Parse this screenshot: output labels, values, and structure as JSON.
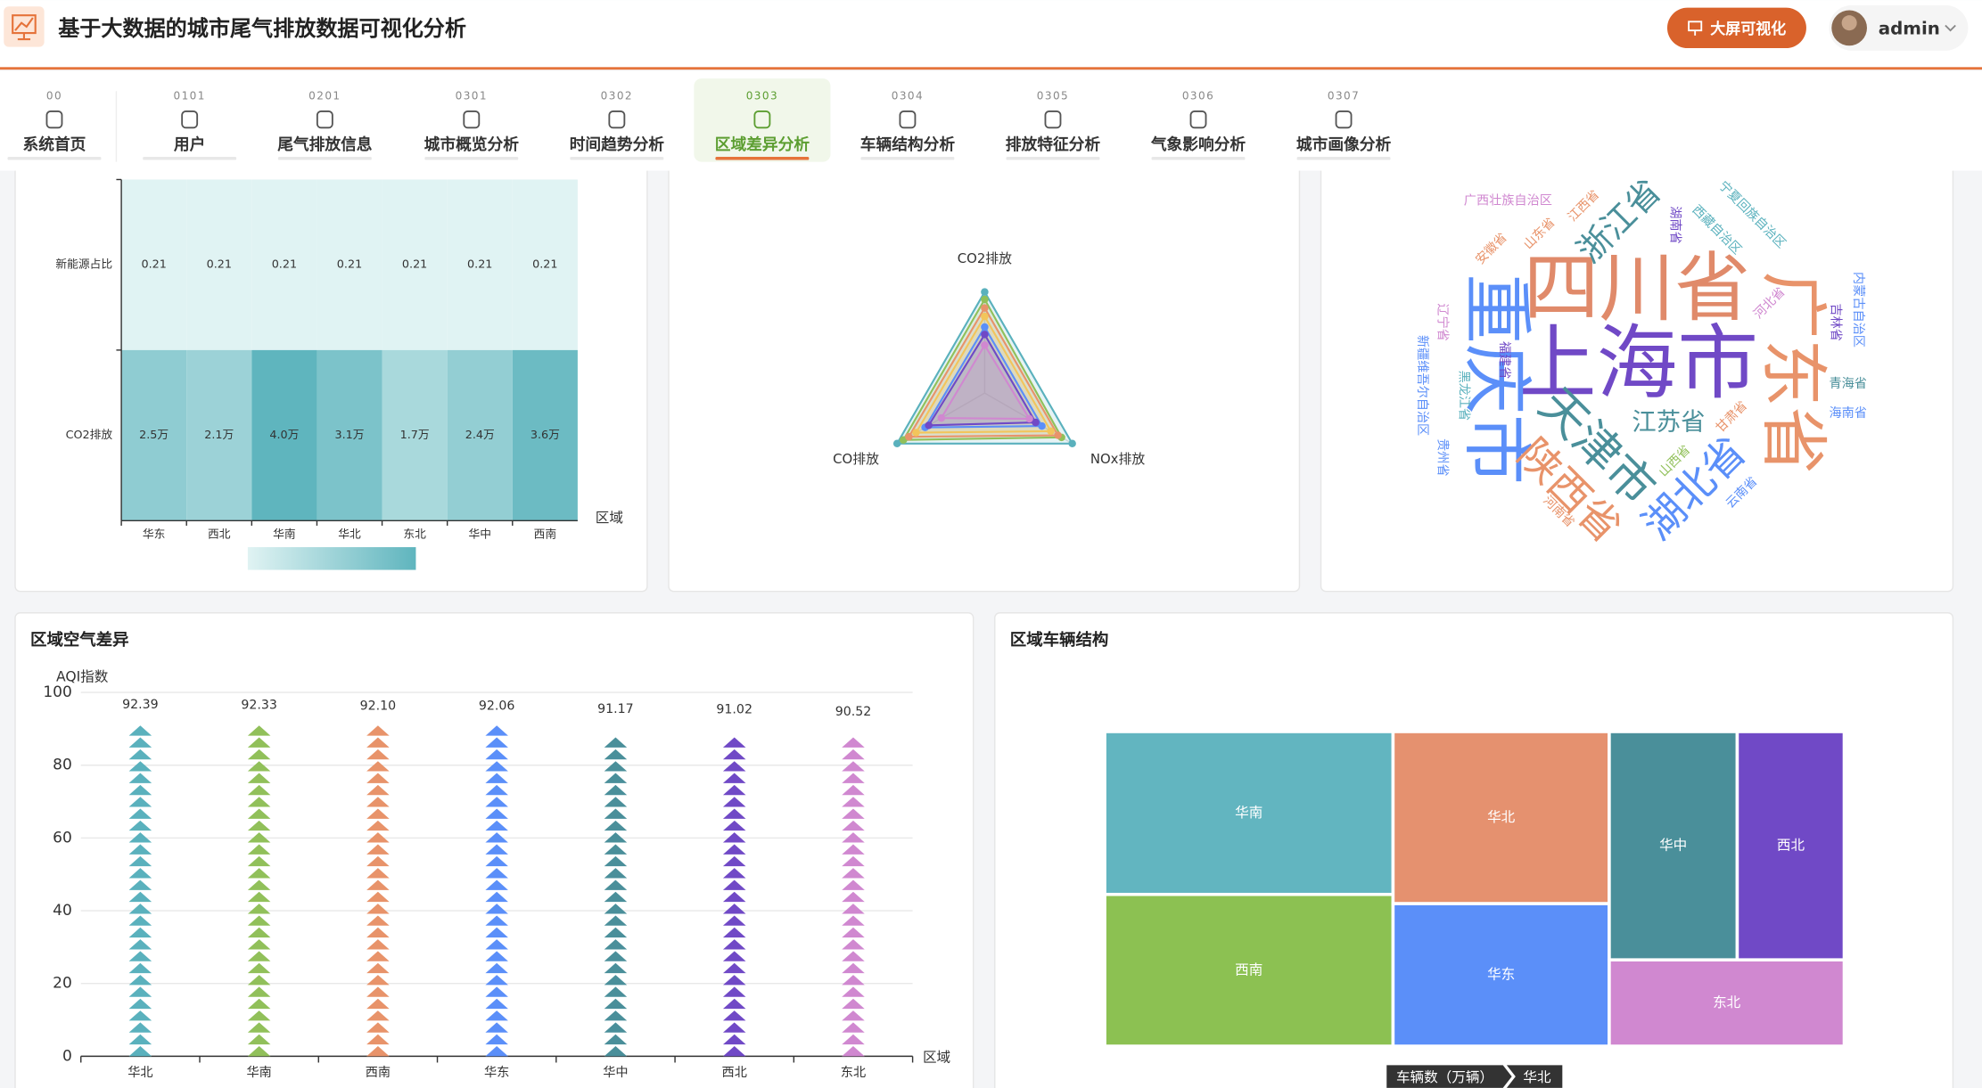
{
  "header": {
    "title": "基于大数据的城市尾气排放数据可视化分析",
    "screen_button": "大屏可视化",
    "user": "admin"
  },
  "nav": [
    {
      "code": "00",
      "label": "系统首页"
    },
    {
      "code": "0101",
      "label": "用户"
    },
    {
      "code": "0201",
      "label": "尾气排放信息"
    },
    {
      "code": "0301",
      "label": "城市概览分析"
    },
    {
      "code": "0302",
      "label": "时间趋势分析"
    },
    {
      "code": "0303",
      "label": "区域差异分析",
      "active": true
    },
    {
      "code": "0304",
      "label": "车辆结构分析"
    },
    {
      "code": "0305",
      "label": "排放特征分析"
    },
    {
      "code": "0306",
      "label": "气象影响分析"
    },
    {
      "code": "0307",
      "label": "城市画像分析"
    }
  ],
  "chart_data": [
    {
      "type": "heatmap",
      "x_label": "区域",
      "categories": [
        "华东",
        "西北",
        "华南",
        "华北",
        "东北",
        "华中",
        "西南"
      ],
      "series": [
        {
          "name": "新能源占比",
          "values": [
            0.21,
            0.21,
            0.21,
            0.21,
            0.21,
            0.21,
            0.21
          ]
        },
        {
          "name": "CO2排放",
          "values": [
            25000,
            21000,
            40000,
            31000,
            17000,
            24000,
            36000
          ],
          "value_labels": [
            "2.5万",
            "2.1万",
            "4.0万",
            "3.1万",
            "1.7万",
            "2.4万",
            "3.6万"
          ]
        }
      ]
    },
    {
      "type": "radar",
      "indicators": [
        "CO2排放",
        "NOx排放",
        "CO排放"
      ],
      "series": [
        {
          "color": "#5ab1bd",
          "values": [
            95,
            98,
            97
          ]
        },
        {
          "color": "#91c05a",
          "values": [
            88,
            86,
            90
          ]
        },
        {
          "color": "#e8936a",
          "values": [
            80,
            82,
            84
          ]
        },
        {
          "color": "#f2c55c",
          "values": [
            72,
            74,
            76
          ]
        },
        {
          "color": "#5b8ff9",
          "values": [
            62,
            64,
            66
          ]
        },
        {
          "color": "#7049c6",
          "values": [
            55,
            57,
            62
          ]
        },
        {
          "color": "#d088d0",
          "values": [
            45,
            50,
            48
          ]
        }
      ]
    },
    {
      "type": "wordcloud",
      "words": [
        {
          "text": "四川省",
          "weight": 60,
          "color": "#e08a6a"
        },
        {
          "text": "上海市",
          "weight": 64,
          "color": "#7049c6"
        },
        {
          "text": "重庆市",
          "weight": 56,
          "color": "#5b8ff9"
        },
        {
          "text": "广东省",
          "weight": 54,
          "color": "#e8936a"
        },
        {
          "text": "天津市",
          "weight": 38,
          "color": "#4a8f9a"
        },
        {
          "text": "陕西省",
          "weight": 34,
          "color": "#e8936a"
        },
        {
          "text": "湖北省",
          "weight": 34,
          "color": "#5b8ff9"
        },
        {
          "text": "浙江省",
          "weight": 28,
          "color": "#4a8f9a"
        },
        {
          "text": "江苏省",
          "weight": 21,
          "color": "#4a8f9a"
        },
        {
          "text": "广西壮族自治区",
          "weight": 12,
          "color": "#d088d0"
        },
        {
          "text": "宁夏回族自治区",
          "weight": 12,
          "color": "#5ab1bd"
        },
        {
          "text": "安徽省",
          "weight": 12,
          "color": "#e8936a"
        },
        {
          "text": "山东省",
          "weight": 12,
          "color": "#e8936a"
        },
        {
          "text": "江西省",
          "weight": 12,
          "color": "#e8936a"
        },
        {
          "text": "西藏自治区",
          "weight": 12,
          "color": "#5ab1bd"
        },
        {
          "text": "青海省",
          "weight": 12,
          "color": "#4a8f9a"
        },
        {
          "text": "海南省",
          "weight": 12,
          "color": "#5b8ff9"
        },
        {
          "text": "吉林省",
          "weight": 12,
          "color": "#7049c6"
        },
        {
          "text": "内蒙古自治区",
          "weight": 12,
          "color": "#5b8ff9"
        },
        {
          "text": "河北省",
          "weight": 12,
          "color": "#d088d0"
        },
        {
          "text": "甘肃省",
          "weight": 12,
          "color": "#e8936a"
        },
        {
          "text": "云南省",
          "weight": 12,
          "color": "#5b8ff9"
        },
        {
          "text": "河南省",
          "weight": 12,
          "color": "#e8936a"
        },
        {
          "text": "辽宁省",
          "weight": 12,
          "color": "#d088d0"
        },
        {
          "text": "新疆维吾尔自治区",
          "weight": 12,
          "color": "#5b8ff9"
        },
        {
          "text": "黑龙江省",
          "weight": 12,
          "color": "#5ab1bd"
        },
        {
          "text": "福建省",
          "weight": 12,
          "color": "#7049c6"
        },
        {
          "text": "贵州省",
          "weight": 12,
          "color": "#5b8ff9"
        },
        {
          "text": "山西省",
          "weight": 12,
          "color": "#91c05a"
        },
        {
          "text": "湖南省",
          "weight": 12,
          "color": "#7049c6"
        }
      ]
    },
    {
      "type": "pictorial_bar",
      "title": "区域空气差异",
      "y_label": "AQI指数",
      "x_label": "区域",
      "categories": [
        "华北",
        "华南",
        "西南",
        "华东",
        "华中",
        "西北",
        "东北"
      ],
      "values": [
        92.39,
        92.33,
        92.1,
        92.06,
        91.17,
        91.02,
        90.52
      ],
      "value_labels": [
        "92.39",
        "92.33",
        "92.10",
        "92.06",
        "91.17",
        "91.02",
        "90.52"
      ],
      "colors": [
        "#5ab1bd",
        "#91c05a",
        "#e8936a",
        "#5b8ff9",
        "#4a8f9a",
        "#7049c6",
        "#d088d0"
      ],
      "ylim": [
        0,
        100
      ],
      "yticks": [
        0,
        20,
        40,
        60,
        80,
        100
      ],
      "grid": true
    },
    {
      "type": "treemap",
      "title": "区域车辆结构",
      "root": "车辆数（万辆）",
      "items": [
        {
          "name": "华南",
          "value": 29.4,
          "color": "#62b5c0"
        },
        {
          "name": "西南",
          "value": 27.4,
          "color": "#8cc152"
        },
        {
          "name": "华北",
          "value": 23.3,
          "color": "#e5916f"
        },
        {
          "name": "华东",
          "value": 19.3,
          "color": "#5b8ff9"
        },
        {
          "name": "华中",
          "value": 18.3,
          "color": "#4a8f9a"
        },
        {
          "name": "西北",
          "value": 15.3,
          "color": "#7049c6"
        },
        {
          "name": "东北",
          "value": 12.7,
          "color": "#d088d0"
        }
      ]
    }
  ]
}
